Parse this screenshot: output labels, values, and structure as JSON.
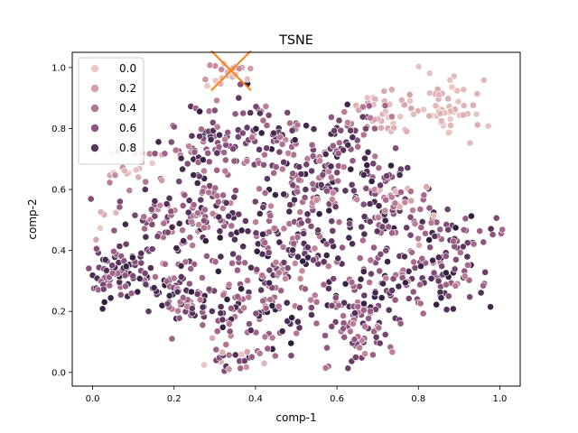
{
  "chart_data": {
    "type": "scatter",
    "title": "TSNE",
    "xlabel": "comp-1",
    "ylabel": "comp-2",
    "xlim": [
      -0.05,
      1.05
    ],
    "ylim": [
      -0.045,
      1.05
    ],
    "xticks": [
      "0.0",
      "0.2",
      "0.4",
      "0.6",
      "0.8",
      "1.0"
    ],
    "yticks": [
      "0.0",
      "0.2",
      "0.4",
      "0.6",
      "0.8",
      "1.0"
    ],
    "grid": false,
    "legend": {
      "placement": "top-left",
      "entries": [
        {
          "label": "0.0",
          "color": "#ecc9c3"
        },
        {
          "label": "0.2",
          "color": "#d4a1a6"
        },
        {
          "label": "0.4",
          "color": "#b57592"
        },
        {
          "label": "0.6",
          "color": "#8e557f"
        },
        {
          "label": "0.8",
          "color": "#5b3460"
        }
      ]
    },
    "hue_colors": [
      "#ecc9c3",
      "#d4a1a6",
      "#b57592",
      "#8e557f",
      "#5b3460",
      "#2d1e3e"
    ],
    "clusters": [
      {
        "cx": 0.07,
        "cy": 0.33,
        "sx": 0.05,
        "sy": 0.05,
        "n": 90,
        "hue": [
          0.45,
          1.0
        ]
      },
      {
        "cx": 0.2,
        "cy": 0.27,
        "sx": 0.04,
        "sy": 0.05,
        "n": 45,
        "hue": [
          0.3,
          0.95
        ]
      },
      {
        "cx": 0.17,
        "cy": 0.5,
        "sx": 0.05,
        "sy": 0.06,
        "n": 55,
        "hue": [
          0.3,
          0.95
        ]
      },
      {
        "cx": 0.1,
        "cy": 0.68,
        "sx": 0.04,
        "sy": 0.04,
        "n": 20,
        "hue": [
          0.0,
          0.4
        ]
      },
      {
        "cx": 0.26,
        "cy": 0.72,
        "sx": 0.05,
        "sy": 0.08,
        "n": 70,
        "hue": [
          0.3,
          1.0
        ]
      },
      {
        "cx": 0.27,
        "cy": 0.52,
        "sx": 0.05,
        "sy": 0.06,
        "n": 60,
        "hue": [
          0.3,
          1.0
        ]
      },
      {
        "cx": 0.35,
        "cy": 0.06,
        "sx": 0.03,
        "sy": 0.04,
        "n": 30,
        "hue": [
          0.0,
          0.9
        ]
      },
      {
        "cx": 0.3,
        "cy": 0.22,
        "sx": 0.05,
        "sy": 0.06,
        "n": 60,
        "hue": [
          0.35,
          1.0
        ]
      },
      {
        "cx": 0.44,
        "cy": 0.18,
        "sx": 0.05,
        "sy": 0.06,
        "n": 55,
        "hue": [
          0.35,
          1.0
        ]
      },
      {
        "cx": 0.42,
        "cy": 0.4,
        "sx": 0.06,
        "sy": 0.07,
        "n": 75,
        "hue": [
          0.3,
          1.0
        ]
      },
      {
        "cx": 0.42,
        "cy": 0.78,
        "sx": 0.06,
        "sy": 0.07,
        "n": 70,
        "hue": [
          0.3,
          1.0
        ]
      },
      {
        "cx": 0.5,
        "cy": 0.58,
        "sx": 0.05,
        "sy": 0.07,
        "n": 60,
        "hue": [
          0.3,
          1.0
        ]
      },
      {
        "cx": 0.58,
        "cy": 0.65,
        "sx": 0.05,
        "sy": 0.06,
        "n": 60,
        "hue": [
          0.3,
          1.0
        ]
      },
      {
        "cx": 0.56,
        "cy": 0.4,
        "sx": 0.06,
        "sy": 0.06,
        "n": 55,
        "hue": [
          0.3,
          1.0
        ]
      },
      {
        "cx": 0.62,
        "cy": 0.22,
        "sx": 0.05,
        "sy": 0.05,
        "n": 55,
        "hue": [
          0.35,
          1.0
        ]
      },
      {
        "cx": 0.66,
        "cy": 0.1,
        "sx": 0.04,
        "sy": 0.04,
        "n": 35,
        "hue": [
          0.3,
          0.8
        ]
      },
      {
        "cx": 0.7,
        "cy": 0.55,
        "sx": 0.05,
        "sy": 0.08,
        "n": 70,
        "hue": [
          0.3,
          1.0
        ]
      },
      {
        "cx": 0.76,
        "cy": 0.3,
        "sx": 0.05,
        "sy": 0.06,
        "n": 60,
        "hue": [
          0.3,
          1.0
        ]
      },
      {
        "cx": 0.88,
        "cy": 0.28,
        "sx": 0.05,
        "sy": 0.05,
        "n": 45,
        "hue": [
          0.35,
          1.0
        ]
      },
      {
        "cx": 0.9,
        "cy": 0.43,
        "sx": 0.06,
        "sy": 0.04,
        "n": 50,
        "hue": [
          0.4,
          1.0
        ]
      },
      {
        "cx": 0.78,
        "cy": 0.55,
        "sx": 0.04,
        "sy": 0.05,
        "n": 30,
        "hue": [
          0.0,
          0.8
        ]
      },
      {
        "cx": 0.72,
        "cy": 0.86,
        "sx": 0.04,
        "sy": 0.04,
        "n": 30,
        "hue": [
          0.0,
          0.2
        ]
      },
      {
        "cx": 0.86,
        "cy": 0.86,
        "sx": 0.04,
        "sy": 0.05,
        "n": 55,
        "hue": [
          0.0,
          0.15
        ]
      },
      {
        "cx": 0.33,
        "cy": 0.97,
        "sx": 0.025,
        "sy": 0.03,
        "n": 20,
        "hue": [
          0.0,
          0.3
        ]
      },
      {
        "cx": 0.65,
        "cy": 0.8,
        "sx": 0.05,
        "sy": 0.05,
        "n": 35,
        "hue": [
          0.3,
          1.0
        ]
      },
      {
        "cx": 0.02,
        "cy": 0.5,
        "sx": 0.02,
        "sy": 0.03,
        "n": 6,
        "hue": [
          0.0,
          0.2
        ]
      }
    ],
    "marker_x": {
      "x": 0.34,
      "y": 0.99,
      "color": "#ff7f0e"
    }
  }
}
